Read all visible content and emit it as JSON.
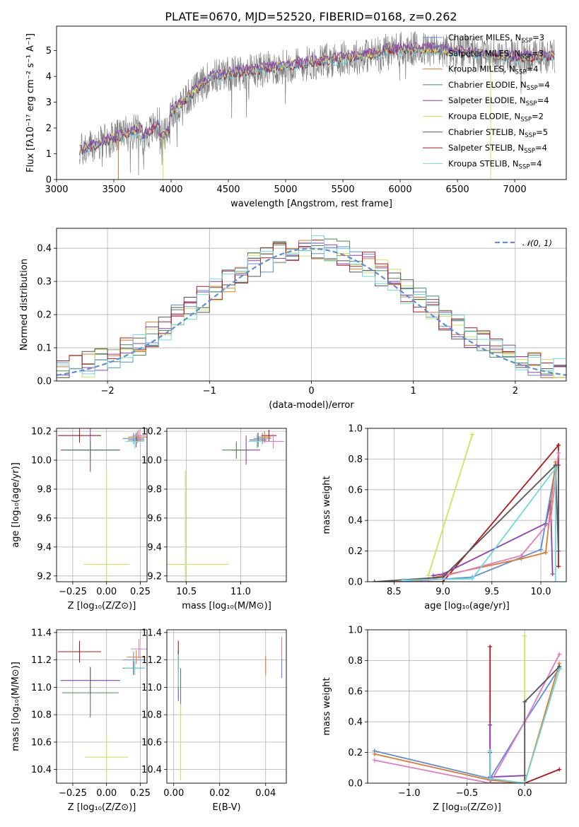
{
  "colors": {
    "chabrier_miles": "#5b8fd9",
    "salpeter_miles": "#7fbf6a",
    "kroupa_miles": "#e07a2a",
    "chabrier_elodie": "#4a8a5a",
    "salpeter_elodie": "#8e3fb0",
    "kroupa_elodie": "#cfe35a",
    "chabrier_stelib": "#555555",
    "salpeter_stelib": "#b0171b",
    "kroupa_stelib": "#6fd8dc",
    "pink": "#e27ac0",
    "gauss": "#5b8fd9",
    "grey_spec": "#808080"
  },
  "legend_spectrum": [
    {
      "text": "Chabrier MILES, N",
      "sub": "SSP",
      "tail": "=3",
      "color": "chabrier_miles"
    },
    {
      "text": "Salpeter MILES, N",
      "sub": "SSP",
      "tail": "=3",
      "color": "salpeter_miles"
    },
    {
      "text": "Kroupa MILES, N",
      "sub": "SSP",
      "tail": "=4",
      "color": "kroupa_miles"
    },
    {
      "text": "Chabrier ELODIE, N",
      "sub": "SSP",
      "tail": "=4",
      "color": "chabrier_elodie"
    },
    {
      "text": "Salpeter ELODIE, N",
      "sub": "SSP",
      "tail": "=4",
      "color": "salpeter_elodie"
    },
    {
      "text": "Kroupa ELODIE, N",
      "sub": "SSP",
      "tail": "=2",
      "color": "kroupa_elodie"
    },
    {
      "text": "Chabrier STELIB, N",
      "sub": "SSP",
      "tail": "=5",
      "color": "chabrier_stelib"
    },
    {
      "text": "Salpeter STELIB, N",
      "sub": "SSP",
      "tail": "=4",
      "color": "salpeter_stelib"
    },
    {
      "text": "Kroupa STELIB, N",
      "sub": "SSP",
      "tail": "=4",
      "color": "kroupa_stelib"
    }
  ],
  "chart_data": [
    {
      "id": "spectrum",
      "type": "line",
      "title": "PLATE=0670, MJD=52520, FIBERID=0168, z=0.262",
      "xlabel": "wavelength [Angstrom, rest frame]",
      "ylabel": "Flux [fλ10⁻¹⁷ erg cm⁻² s⁻¹ A⁻¹]",
      "xlim": [
        3000,
        7450
      ],
      "ylim": [
        0,
        5.95
      ],
      "xticks": [
        3000,
        3500,
        4000,
        4500,
        5000,
        5500,
        6000,
        6500,
        7000
      ],
      "yticks": [
        0,
        1,
        2,
        3,
        4,
        5
      ],
      "x_range": [
        3200,
        7350
      ],
      "legend": "top-right"
    },
    {
      "id": "residuals",
      "type": "line",
      "xlabel": "(data-model)/error",
      "ylabel": "Normed distribution",
      "xlim": [
        -2.5,
        2.5
      ],
      "ylim": [
        0,
        0.46
      ],
      "xticks": [
        -2,
        -1,
        0,
        1,
        2
      ],
      "yticks": [
        0.0,
        0.1,
        0.2,
        0.3,
        0.4
      ],
      "grid": true,
      "legend": "top-right",
      "legend_label": "𝒩(0, 1)"
    },
    {
      "id": "age_vs_Z",
      "type": "scatter",
      "xlabel": "Z [log₁₀(Z/Z⊙)]",
      "ylabel": "age  [log₁₀(age/yr)]",
      "xlim": [
        -0.37,
        0.3
      ],
      "ylim": [
        9.16,
        10.22
      ],
      "xticks": [
        -0.25,
        0.0,
        0.25
      ],
      "yticks": [
        9.2,
        9.4,
        9.6,
        9.8,
        10.0,
        10.2
      ],
      "grid": true,
      "points": [
        {
          "x": 0.0,
          "y": 9.28,
          "xerr": 0.17,
          "yerr": 0.65,
          "color": "kroupa_elodie"
        },
        {
          "x": -0.12,
          "y": 10.07,
          "xerr": 0.22,
          "yerr": 0.15,
          "color": "salpeter_elodie"
        },
        {
          "x": -0.12,
          "y": 10.07,
          "xerr": 0.2,
          "yerr": 0.06,
          "color": "chabrier_elodie"
        },
        {
          "x": -0.2,
          "y": 10.17,
          "xerr": 0.16,
          "yerr": 0.05,
          "color": "salpeter_stelib"
        },
        {
          "x": 0.2,
          "y": 10.15,
          "xerr": 0.08,
          "yerr": 0.04,
          "color": "chabrier_miles"
        },
        {
          "x": 0.23,
          "y": 10.16,
          "xerr": 0.07,
          "yerr": 0.04,
          "color": "kroupa_miles"
        },
        {
          "x": 0.22,
          "y": 10.14,
          "xerr": 0.06,
          "yerr": 0.05,
          "color": "chabrier_stelib"
        },
        {
          "x": 0.21,
          "y": 10.13,
          "xerr": 0.07,
          "yerr": 0.05,
          "color": "kroupa_stelib"
        },
        {
          "x": 0.24,
          "y": 10.17,
          "xerr": 0.05,
          "yerr": 0.04,
          "color": "pink"
        }
      ]
    },
    {
      "id": "age_vs_mass",
      "type": "scatter",
      "xlabel": "mass [log₁₀(M/M⊙)]",
      "xlim": [
        10.32,
        11.42
      ],
      "ylim": [
        9.16,
        10.22
      ],
      "xticks": [
        10.5,
        11.0
      ],
      "yticks": [
        9.2,
        9.4,
        9.6,
        9.8,
        10.0,
        10.2
      ],
      "grid": true,
      "points": [
        {
          "x": 10.49,
          "y": 9.28,
          "xerr": 0.4,
          "yerr": 0.65,
          "color": "kroupa_elodie"
        },
        {
          "x": 11.05,
          "y": 10.07,
          "xerr": 0.13,
          "yerr": 0.1,
          "color": "salpeter_elodie"
        },
        {
          "x": 10.96,
          "y": 10.07,
          "xerr": 0.13,
          "yerr": 0.06,
          "color": "chabrier_elodie"
        },
        {
          "x": 11.26,
          "y": 10.17,
          "xerr": 0.07,
          "yerr": 0.04,
          "color": "salpeter_stelib"
        },
        {
          "x": 11.2,
          "y": 10.15,
          "xerr": 0.08,
          "yerr": 0.04,
          "color": "chabrier_miles"
        },
        {
          "x": 11.22,
          "y": 10.16,
          "xerr": 0.06,
          "yerr": 0.04,
          "color": "kroupa_miles"
        },
        {
          "x": 11.16,
          "y": 10.14,
          "xerr": 0.08,
          "yerr": 0.05,
          "color": "chabrier_stelib"
        },
        {
          "x": 11.15,
          "y": 10.13,
          "xerr": 0.08,
          "yerr": 0.05,
          "color": "kroupa_stelib"
        },
        {
          "x": 11.3,
          "y": 10.13,
          "xerr": 0.1,
          "yerr": 0.05,
          "color": "pink"
        }
      ]
    },
    {
      "id": "weight_vs_age",
      "type": "line",
      "xlabel": "age  [log₁₀(age/yr)]",
      "ylabel": "mass weight",
      "xlim": [
        8.23,
        10.26
      ],
      "ylim": [
        0,
        1.0
      ],
      "xticks": [
        8.5,
        9.0,
        9.5,
        10.0
      ],
      "yticks": [
        0.0,
        0.2,
        0.4,
        0.6,
        0.8,
        1.0
      ],
      "grid": true,
      "series": [
        {
          "color": "kroupa_elodie",
          "x": [
            8.85,
            9.3
          ],
          "y": [
            0.04,
            0.96
          ]
        },
        {
          "color": "salpeter_stelib",
          "x": [
            8.3,
            9.0,
            10.18,
            10.18,
            10.18
          ],
          "y": [
            0.0,
            0.0,
            0.89,
            0.1,
            0.89
          ]
        },
        {
          "color": "salpeter_elodie",
          "x": [
            8.9,
            9.0,
            10.05,
            10.1,
            10.12
          ],
          "y": [
            0.04,
            0.05,
            0.38,
            0.52,
            0.05
          ]
        },
        {
          "color": "chabrier_miles",
          "x": [
            8.6,
            9.3,
            10.0,
            10.15
          ],
          "y": [
            0.0,
            0.03,
            0.21,
            0.75
          ]
        },
        {
          "color": "kroupa_miles",
          "x": [
            8.7,
            9.8,
            10.05,
            10.15
          ],
          "y": [
            0.0,
            0.15,
            0.19,
            0.78
          ]
        },
        {
          "color": "pink",
          "x": [
            8.8,
            9.8,
            10.1,
            10.18
          ],
          "y": [
            0.0,
            0.17,
            0.4,
            0.84
          ]
        },
        {
          "color": "chabrier_stelib",
          "x": [
            8.3,
            9.0,
            10.15,
            10.18,
            10.18
          ],
          "y": [
            0.0,
            0.03,
            0.76,
            0.2,
            0.76
          ]
        },
        {
          "color": "kroupa_stelib",
          "x": [
            8.6,
            9.3,
            10.15,
            10.15
          ],
          "y": [
            0.01,
            0.02,
            0.74,
            0.0
          ]
        }
      ]
    },
    {
      "id": "mass_vs_Z",
      "type": "scatter",
      "xlabel": "Z [log₁₀(Z/Z⊙)]",
      "ylabel": "mass [log₁₀(M/M⊙)]",
      "xlim": [
        -0.37,
        0.3
      ],
      "ylim": [
        10.3,
        11.42
      ],
      "xticks": [
        -0.25,
        0.0,
        0.25
      ],
      "yticks": [
        10.4,
        10.6,
        10.8,
        11.0,
        11.2,
        11.4
      ],
      "grid": true,
      "points": [
        {
          "x": 0.0,
          "y": 10.49,
          "xerr": 0.16,
          "yerr": 0.16,
          "color": "kroupa_elodie"
        },
        {
          "x": -0.12,
          "y": 11.05,
          "xerr": 0.22,
          "yerr": 0.1,
          "color": "salpeter_elodie"
        },
        {
          "x": -0.12,
          "y": 10.96,
          "xerr": 0.21,
          "yerr": 0.18,
          "color": "chabrier_elodie"
        },
        {
          "x": -0.2,
          "y": 11.26,
          "xerr": 0.16,
          "yerr": 0.08,
          "color": "salpeter_stelib"
        },
        {
          "x": 0.2,
          "y": 11.2,
          "xerr": 0.08,
          "yerr": 0.06,
          "color": "chabrier_miles"
        },
        {
          "x": 0.22,
          "y": 11.22,
          "xerr": 0.07,
          "yerr": 0.05,
          "color": "kroupa_miles"
        },
        {
          "x": 0.2,
          "y": 11.14,
          "xerr": 0.08,
          "yerr": 0.05,
          "color": "chabrier_stelib"
        },
        {
          "x": 0.21,
          "y": 11.14,
          "xerr": 0.08,
          "yerr": 0.05,
          "color": "kroupa_stelib"
        },
        {
          "x": 0.24,
          "y": 11.28,
          "xerr": 0.06,
          "yerr": 0.07,
          "color": "pink"
        }
      ]
    },
    {
      "id": "mass_vs_EBV",
      "type": "scatter",
      "xlabel": "E(B-V)",
      "xlim": [
        -0.003,
        0.049
      ],
      "ylim": [
        10.3,
        11.42
      ],
      "xticks": [
        0.0,
        0.02,
        0.04
      ],
      "yticks": [
        10.4,
        10.6,
        10.8,
        11.0,
        11.2,
        11.4
      ],
      "grid": true,
      "points": [
        {
          "x": 0.04,
          "y": 11.16,
          "xerr": 0.0,
          "yerr": 0.07,
          "color": "kroupa_miles"
        },
        {
          "x": 0.047,
          "y": 11.22,
          "xerr": 0.0,
          "yerr": 0.15,
          "color": "pink"
        },
        {
          "x": 0.047,
          "y": 11.14,
          "xerr": 0.0,
          "yerr": 0.07,
          "color": "chabrier_miles"
        },
        {
          "x": 0.002,
          "y": 11.26,
          "xerr": 0.0,
          "yerr": 0.08,
          "color": "salpeter_stelib"
        },
        {
          "x": 0.002,
          "y": 11.05,
          "xerr": 0.0,
          "yerr": 0.15,
          "color": "salpeter_elodie"
        },
        {
          "x": 0.002,
          "y": 11.2,
          "xerr": 0.0,
          "yerr": 0.07,
          "color": "chabrier_stelib"
        },
        {
          "x": 0.002,
          "y": 11.12,
          "xerr": 0.0,
          "yerr": 0.12,
          "color": "kroupa_stelib"
        },
        {
          "x": 0.003,
          "y": 10.96,
          "xerr": 0.0,
          "yerr": 0.18,
          "color": "chabrier_elodie"
        },
        {
          "x": 0.003,
          "y": 10.6,
          "xerr": 0.0,
          "yerr": 0.28,
          "color": "kroupa_elodie"
        }
      ]
    },
    {
      "id": "weight_vs_Z",
      "type": "line",
      "xlabel": "Z [log₁₀(Z/Z⊙)]",
      "ylabel": "mass weight",
      "xlim": [
        -1.36,
        0.36
      ],
      "ylim": [
        0,
        1.0
      ],
      "xticks": [
        -1.0,
        -0.5,
        0.0
      ],
      "yticks": [
        0.0,
        0.2,
        0.4,
        0.6,
        0.8,
        1.0
      ],
      "grid": true,
      "series": [
        {
          "color": "kroupa_elodie",
          "x": [
            0.0,
            0.0
          ],
          "y": [
            0.02,
            0.96
          ]
        },
        {
          "color": "salpeter_stelib",
          "x": [
            -0.3,
            -0.3,
            0.0,
            0.3
          ],
          "y": [
            0.89,
            0.0,
            0.0,
            0.09
          ]
        },
        {
          "color": "salpeter_elodie",
          "x": [
            -0.3,
            -0.3,
            0.0,
            0.0
          ],
          "y": [
            0.38,
            0.04,
            0.05,
            0.05
          ]
        },
        {
          "color": "chabrier_miles",
          "x": [
            -1.3,
            -0.3,
            0.0,
            0.3
          ],
          "y": [
            0.21,
            0.03,
            0.4,
            0.75
          ]
        },
        {
          "color": "kroupa_miles",
          "x": [
            -1.3,
            -0.3,
            0.0,
            0.3
          ],
          "y": [
            0.19,
            0.02,
            0.0,
            0.78
          ]
        },
        {
          "color": "pink",
          "x": [
            -1.3,
            -0.3,
            0.0,
            0.3
          ],
          "y": [
            0.15,
            0.0,
            0.4,
            0.84
          ]
        },
        {
          "color": "chabrier_stelib",
          "x": [
            -0.3,
            -0.3,
            0.0,
            0.0,
            0.3
          ],
          "y": [
            0.2,
            0.03,
            0.0,
            0.53,
            0.76
          ]
        },
        {
          "color": "kroupa_stelib",
          "x": [
            -0.3,
            -0.3,
            0.0,
            0.3
          ],
          "y": [
            0.21,
            0.03,
            0.0,
            0.74
          ]
        }
      ]
    }
  ]
}
